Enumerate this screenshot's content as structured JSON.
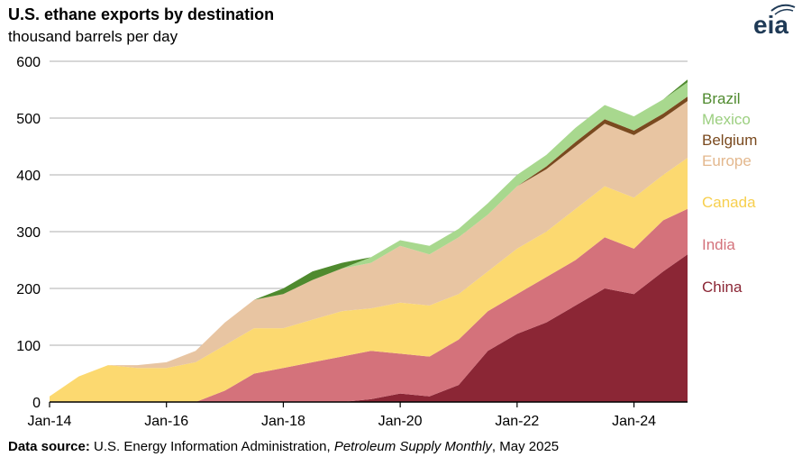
{
  "header": {
    "title": "U.S. ethane exports by destination",
    "subtitle": "thousand barrels per day",
    "logo_text": "eia"
  },
  "source": {
    "prefix": "Data source:",
    "text1": " U.S. Energy Information Administration, ",
    "publication": "Petroleum Supply Monthly",
    "text2": ", May 2025"
  },
  "chart_data": {
    "type": "area",
    "stacked": true,
    "title": "U.S. ethane exports by destination",
    "subtitle": "thousand barrels per day",
    "ylim": [
      0,
      600
    ],
    "yticks": [
      0,
      100,
      200,
      300,
      400,
      500,
      600
    ],
    "xlim": [
      "2014-01",
      "2024-12"
    ],
    "xticks": [
      "Jan-14",
      "Jan-16",
      "Jan-18",
      "Jan-20",
      "Jan-22",
      "Jan-24"
    ],
    "grid": true,
    "legend_placement": "right, inline next to series",
    "x": [
      "2014-01",
      "2014-07",
      "2015-01",
      "2015-07",
      "2016-01",
      "2016-07",
      "2017-01",
      "2017-07",
      "2018-01",
      "2018-07",
      "2019-01",
      "2019-07",
      "2020-01",
      "2020-07",
      "2021-01",
      "2021-07",
      "2022-01",
      "2022-07",
      "2023-01",
      "2023-07",
      "2024-01",
      "2024-07",
      "2024-12"
    ],
    "series": [
      {
        "name": "China",
        "color": "#8b2635",
        "values": [
          0,
          0,
          0,
          0,
          0,
          0,
          0,
          0,
          0,
          0,
          0,
          5,
          15,
          10,
          30,
          90,
          120,
          140,
          170,
          200,
          190,
          230,
          260
        ]
      },
      {
        "name": "India",
        "color": "#d4727b",
        "values": [
          0,
          0,
          0,
          0,
          0,
          0,
          20,
          50,
          60,
          70,
          80,
          85,
          70,
          70,
          80,
          70,
          70,
          80,
          80,
          90,
          80,
          90,
          80
        ]
      },
      {
        "name": "Canada",
        "color": "#fcd970",
        "values": [
          10,
          45,
          65,
          60,
          60,
          70,
          80,
          80,
          70,
          75,
          80,
          75,
          90,
          90,
          80,
          70,
          80,
          80,
          90,
          90,
          90,
          80,
          90
        ]
      },
      {
        "name": "Europe",
        "color": "#e8c5a2",
        "values": [
          0,
          0,
          0,
          5,
          10,
          20,
          40,
          50,
          60,
          70,
          75,
          80,
          100,
          90,
          100,
          100,
          110,
          110,
          110,
          110,
          110,
          100,
          100
        ]
      },
      {
        "name": "Belgium",
        "color": "#7a4a1f",
        "values": [
          0,
          0,
          0,
          0,
          0,
          0,
          0,
          0,
          0,
          0,
          0,
          0,
          0,
          0,
          0,
          0,
          0,
          5,
          8,
          8,
          8,
          8,
          8
        ]
      },
      {
        "name": "Mexico",
        "color": "#a8d88e",
        "values": [
          0,
          0,
          0,
          0,
          0,
          0,
          0,
          0,
          0,
          0,
          0,
          10,
          10,
          15,
          15,
          20,
          20,
          20,
          25,
          25,
          25,
          25,
          25
        ]
      },
      {
        "name": "Brazil",
        "color": "#4f8a2e",
        "values": [
          0,
          0,
          0,
          0,
          0,
          0,
          0,
          0,
          10,
          15,
          10,
          0,
          0,
          0,
          0,
          0,
          0,
          0,
          0,
          0,
          0,
          0,
          5
        ]
      }
    ]
  },
  "colors": {
    "grid": "#bfbfbf",
    "axis": "#000000",
    "logo": "#1f3a56"
  }
}
